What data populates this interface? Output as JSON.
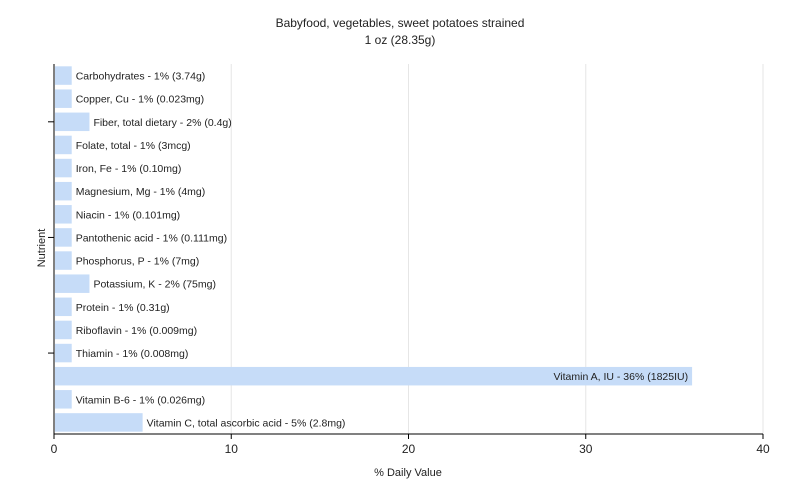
{
  "chart_data": {
    "type": "bar",
    "orientation": "horizontal",
    "title": "Babyfood, vegetables, sweet potatoes strained",
    "subtitle": "1 oz (28.35g)",
    "xlabel": "% Daily Value",
    "ylabel": "Nutrient",
    "xlim": [
      0,
      40
    ],
    "xticks": [
      "0",
      "10",
      "20",
      "30",
      "40"
    ],
    "grid": "vertical",
    "bar_color": "#c6dcf8",
    "categories": [
      "Carbohydrates - 1% (3.74g)",
      "Copper, Cu - 1% (0.023mg)",
      "Fiber, total dietary - 2% (0.4g)",
      "Folate, total - 1% (3mcg)",
      "Iron, Fe - 1% (0.10mg)",
      "Magnesium, Mg - 1% (4mg)",
      "Niacin - 1% (0.101mg)",
      "Pantothenic acid - 1% (0.111mg)",
      "Phosphorus, P - 1% (7mg)",
      "Potassium, K - 2% (75mg)",
      "Protein - 1% (0.31g)",
      "Riboflavin - 1% (0.009mg)",
      "Thiamin - 1% (0.008mg)",
      "Vitamin A, IU - 36% (1825IU)",
      "Vitamin B-6 - 1% (0.026mg)",
      "Vitamin C, total ascorbic acid - 5% (2.8mg)"
    ],
    "values": [
      1,
      1,
      2,
      1,
      1,
      1,
      1,
      1,
      1,
      2,
      1,
      1,
      1,
      36,
      1,
      5
    ]
  }
}
